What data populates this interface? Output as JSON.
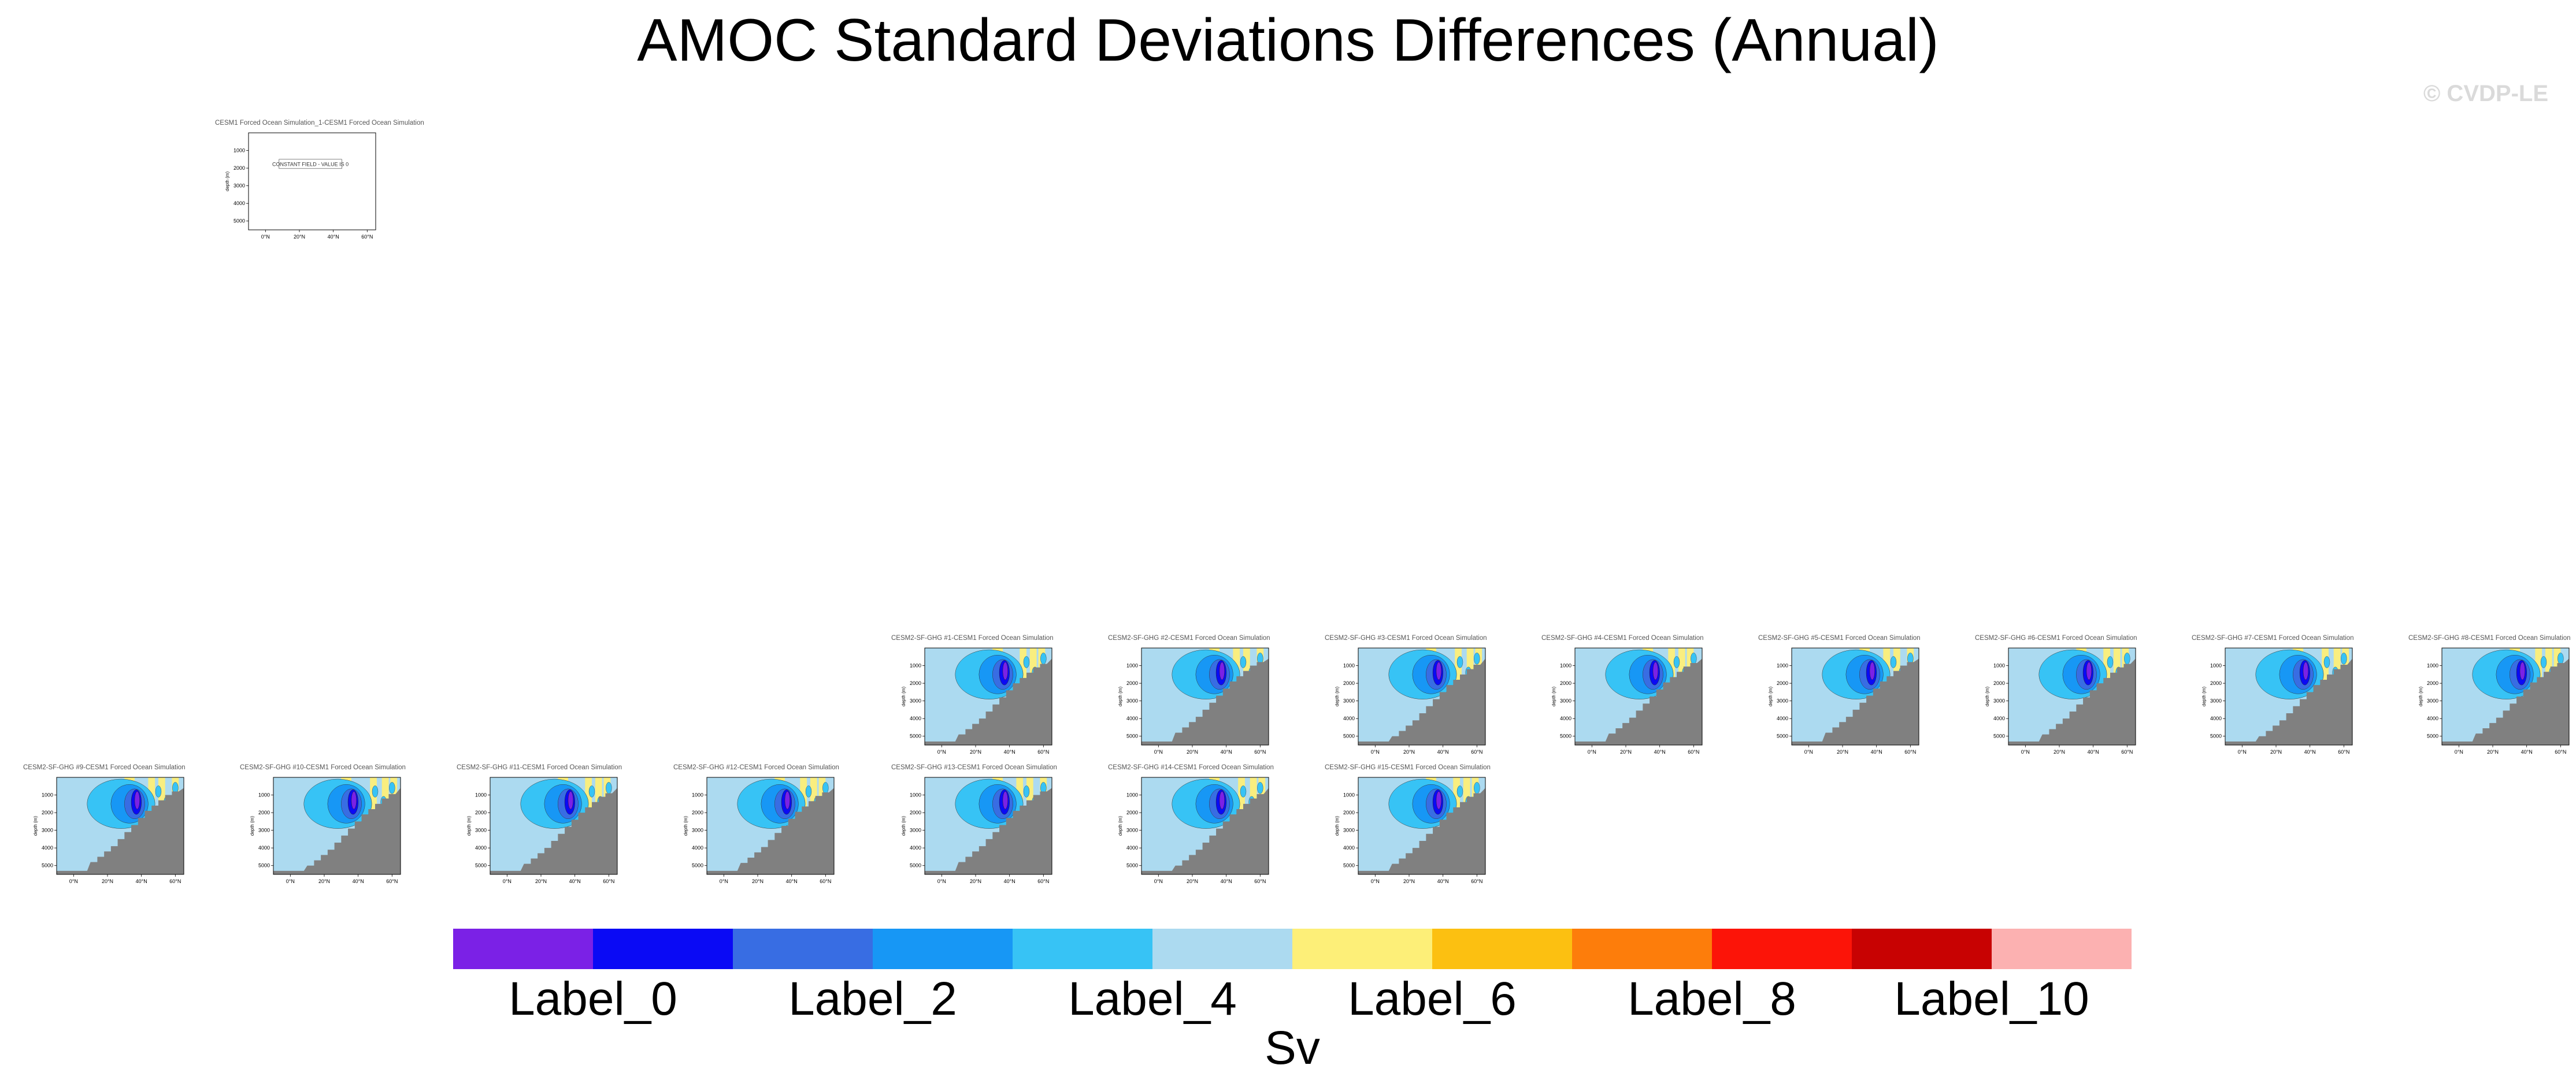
{
  "title": "AMOC Standard Deviations Differences (Annual)",
  "watermark": "© CVDP-LE",
  "chart_data": {
    "type": "heatmap",
    "title": "AMOC Standard Deviations Differences (Annual)",
    "colorbar": {
      "colors": [
        "#7b21e6",
        "#0a0af5",
        "#386de3",
        "#1797f5",
        "#37c3f5",
        "#acdaf0",
        "#fdef78",
        "#fcc011",
        "#fd7d0b",
        "#fc1408",
        "#c80202",
        "#fcb1b1"
      ],
      "labels": [
        "Label_0",
        "Label_2",
        "Label_4",
        "Label_6",
        "Label_8",
        "Label_10"
      ],
      "label_positions": [
        1,
        3,
        5,
        7,
        9,
        11
      ],
      "units": "Sv"
    },
    "panel_axes": {
      "xticks": [
        "0°N",
        "20°N",
        "40°N",
        "60°N"
      ],
      "yticks": [
        "1000",
        "2000",
        "3000",
        "4000",
        "5000"
      ],
      "ylabel": "depth (m)",
      "xlim": [
        -10,
        65
      ],
      "ylim": [
        0,
        5500
      ]
    },
    "panels": [
      {
        "title": "CESM1 Forced Ocean Simulation_1-CESM1 Forced Ocean Simulation",
        "status": "CONSTANT FIELD - VALUE IS 0"
      },
      {
        "title": "CESM2-SF-GHG #1-CESM1 Forced Ocean Simulation",
        "pattern": 0
      },
      {
        "title": "CESM2-SF-GHG #2-CESM1 Forced Ocean Simulation",
        "pattern": 1
      },
      {
        "title": "CESM2-SF-GHG #3-CESM1 Forced Ocean Simulation",
        "pattern": 2
      },
      {
        "title": "CESM2-SF-GHG #4-CESM1 Forced Ocean Simulation",
        "pattern": 3
      },
      {
        "title": "CESM2-SF-GHG #5-CESM1 Forced Ocean Simulation",
        "pattern": 1
      },
      {
        "title": "CESM2-SF-GHG #6-CESM1 Forced Ocean Simulation",
        "pattern": 0
      },
      {
        "title": "CESM2-SF-GHG #7-CESM1 Forced Ocean Simulation",
        "pattern": 2
      },
      {
        "title": "CESM2-SF-GHG #8-CESM1 Forced Ocean Simulation",
        "pattern": 3
      },
      {
        "title": "CESM2-SF-GHG #9-CESM1 Forced Ocean Simulation",
        "pattern": 1
      },
      {
        "title": "CESM2-SF-GHG #10-CESM1 Forced Ocean Simulation",
        "pattern": 2
      },
      {
        "title": "CESM2-SF-GHG #11-CESM1 Forced Ocean Simulation",
        "pattern": 0
      },
      {
        "title": "CESM2-SF-GHG #12-CESM1 Forced Ocean Simulation",
        "pattern": 3
      },
      {
        "title": "CESM2-SF-GHG #13-CESM1 Forced Ocean Simulation",
        "pattern": 1
      },
      {
        "title": "CESM2-SF-GHG #14-CESM1 Forced Ocean Simulation",
        "pattern": 2
      },
      {
        "title": "CESM2-SF-GHG #15-CESM1 Forced Ocean Simulation",
        "pattern": 0
      }
    ]
  }
}
